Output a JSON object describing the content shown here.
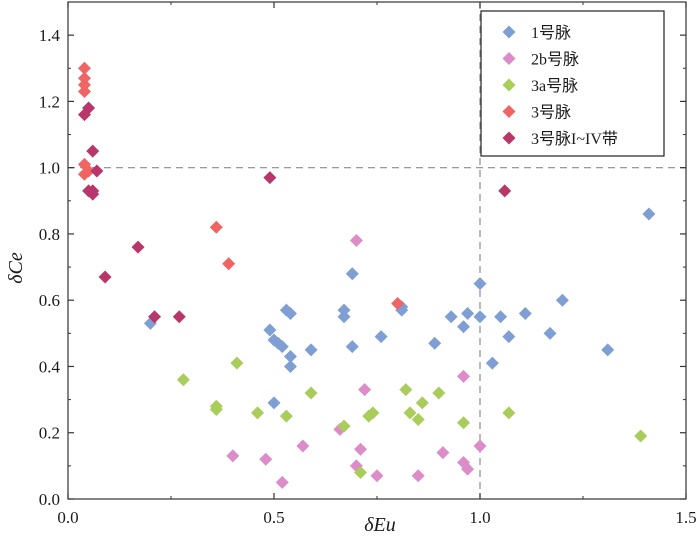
{
  "chart_data": {
    "type": "scatter",
    "xlabel": "δEu",
    "ylabel": "δCe",
    "xlim": [
      0,
      1.5
    ],
    "ylim": [
      0,
      1.5
    ],
    "xticks": [
      0,
      0.5,
      1.0,
      1.5
    ],
    "xtick_labels": [
      "0.0",
      "0.5",
      "1.0",
      "1.5"
    ],
    "yticks": [
      0,
      0.2,
      0.4,
      0.6,
      0.8,
      1.0,
      1.2,
      1.4
    ],
    "ytick_labels": [
      "0.0",
      "0.2",
      "0.4",
      "0.6",
      "0.8",
      "1.0",
      "1.2",
      "1.4"
    ],
    "grid": false,
    "legend_position": "top-right",
    "reference_lines": [
      {
        "orientation": "horizontal",
        "value": 1.0,
        "style": "dashed"
      },
      {
        "orientation": "vertical",
        "value": 1.0,
        "style": "dashed"
      }
    ],
    "marker": "diamond",
    "series": [
      {
        "name": "1号脉",
        "color": "#7f9fd4",
        "points": [
          [
            0.2,
            0.53
          ],
          [
            0.49,
            0.51
          ],
          [
            0.5,
            0.48
          ],
          [
            0.51,
            0.47
          ],
          [
            0.52,
            0.46
          ],
          [
            0.53,
            0.57
          ],
          [
            0.54,
            0.56
          ],
          [
            0.54,
            0.43
          ],
          [
            0.54,
            0.4
          ],
          [
            0.5,
            0.29
          ],
          [
            0.59,
            0.45
          ],
          [
            0.67,
            0.57
          ],
          [
            0.67,
            0.55
          ],
          [
            0.69,
            0.46
          ],
          [
            0.69,
            0.68
          ],
          [
            0.76,
            0.49
          ],
          [
            0.81,
            0.57
          ],
          [
            0.81,
            0.58
          ],
          [
            0.89,
            0.47
          ],
          [
            0.93,
            0.55
          ],
          [
            0.96,
            0.52
          ],
          [
            0.97,
            0.56
          ],
          [
            1.0,
            0.65
          ],
          [
            1.0,
            0.55
          ],
          [
            1.03,
            0.41
          ],
          [
            1.05,
            0.55
          ],
          [
            1.07,
            0.49
          ],
          [
            1.11,
            0.56
          ],
          [
            1.17,
            0.5
          ],
          [
            1.2,
            0.6
          ],
          [
            1.31,
            0.45
          ],
          [
            1.41,
            0.86
          ]
        ]
      },
      {
        "name": "2b号脉",
        "color": "#dc8cc8",
        "points": [
          [
            0.4,
            0.13
          ],
          [
            0.48,
            0.12
          ],
          [
            0.52,
            0.05
          ],
          [
            0.57,
            0.16
          ],
          [
            0.66,
            0.21
          ],
          [
            0.7,
            0.78
          ],
          [
            0.7,
            0.1
          ],
          [
            0.71,
            0.15
          ],
          [
            0.72,
            0.33
          ],
          [
            0.75,
            0.07
          ],
          [
            0.85,
            0.07
          ],
          [
            0.91,
            0.14
          ],
          [
            0.96,
            0.37
          ],
          [
            0.96,
            0.11
          ],
          [
            0.97,
            0.09
          ],
          [
            1.0,
            0.16
          ]
        ]
      },
      {
        "name": "3a号脉",
        "color": "#a8cd5a",
        "points": [
          [
            0.28,
            0.36
          ],
          [
            0.36,
            0.28
          ],
          [
            0.36,
            0.27
          ],
          [
            0.41,
            0.41
          ],
          [
            0.46,
            0.26
          ],
          [
            0.53,
            0.25
          ],
          [
            0.59,
            0.32
          ],
          [
            0.67,
            0.22
          ],
          [
            0.71,
            0.08
          ],
          [
            0.73,
            0.25
          ],
          [
            0.74,
            0.26
          ],
          [
            0.82,
            0.33
          ],
          [
            0.83,
            0.26
          ],
          [
            0.85,
            0.24
          ],
          [
            0.86,
            0.29
          ],
          [
            0.9,
            0.32
          ],
          [
            0.96,
            0.23
          ],
          [
            1.07,
            0.26
          ],
          [
            1.39,
            0.19
          ]
        ]
      },
      {
        "name": "3号脉",
        "color": "#f06464",
        "points": [
          [
            0.04,
            1.3
          ],
          [
            0.04,
            1.27
          ],
          [
            0.04,
            1.25
          ],
          [
            0.04,
            1.23
          ],
          [
            0.04,
            1.01
          ],
          [
            0.04,
            0.98
          ],
          [
            0.05,
            0.99
          ],
          [
            0.36,
            0.82
          ],
          [
            0.39,
            0.71
          ],
          [
            0.8,
            0.59
          ]
        ]
      },
      {
        "name": "3号脉I~IV带",
        "color": "#b8366a",
        "points": [
          [
            0.04,
            1.16
          ],
          [
            0.05,
            1.18
          ],
          [
            0.06,
            1.05
          ],
          [
            0.07,
            0.99
          ],
          [
            0.05,
            0.93
          ],
          [
            0.06,
            0.92
          ],
          [
            0.06,
            0.93
          ],
          [
            0.09,
            0.67
          ],
          [
            0.17,
            0.76
          ],
          [
            0.21,
            0.55
          ],
          [
            0.27,
            0.55
          ],
          [
            0.49,
            0.97
          ],
          [
            1.06,
            0.93
          ]
        ]
      }
    ]
  }
}
